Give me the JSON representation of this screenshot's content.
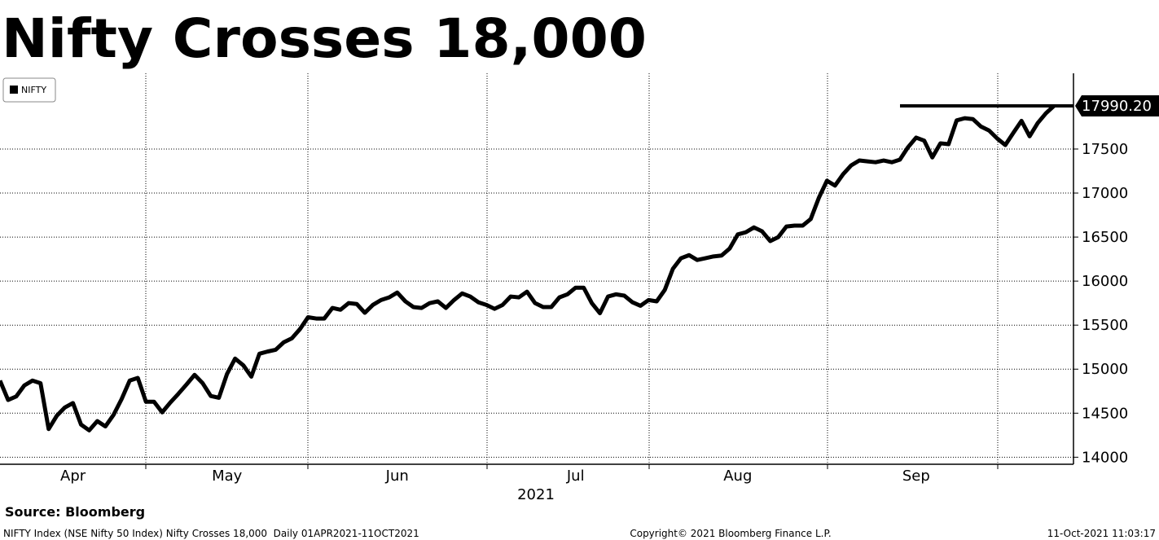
{
  "chart_data": {
    "type": "line",
    "title": "Nifty Crosses 18,000",
    "x_label": "2021",
    "categories": [
      null,
      null,
      null,
      null,
      null,
      null,
      null,
      null,
      null,
      "Apr",
      null,
      null,
      null,
      null,
      null,
      null,
      null,
      null,
      null,
      null,
      null,
      null,
      null,
      null,
      null,
      null,
      null,
      null,
      "May",
      null,
      null,
      null,
      null,
      null,
      null,
      null,
      null,
      null,
      null,
      null,
      null,
      null,
      null,
      null,
      null,
      null,
      null,
      null,
      null,
      "Jun",
      null,
      null,
      null,
      null,
      null,
      null,
      null,
      null,
      null,
      null,
      null,
      null,
      null,
      null,
      null,
      null,
      null,
      null,
      null,
      null,
      null,
      "Jul",
      null,
      null,
      null,
      null,
      null,
      null,
      null,
      null,
      null,
      null,
      null,
      null,
      null,
      null,
      null,
      null,
      null,
      null,
      null,
      "Aug",
      null,
      null,
      null,
      null,
      null,
      null,
      null,
      null,
      null,
      null,
      null,
      null,
      null,
      null,
      null,
      null,
      null,
      null,
      null,
      null,
      null,
      "Sep",
      null,
      null,
      null,
      null,
      null,
      null,
      null,
      null,
      null,
      null,
      null,
      null,
      null,
      null,
      null,
      null,
      null
    ],
    "series": [
      {
        "name": "NIFTY",
        "color": "#000000",
        "values": [
          14870,
          14650,
          14690,
          14815,
          14870,
          14840,
          14320,
          14470,
          14565,
          14615,
          14370,
          14305,
          14410,
          14350,
          14480,
          14660,
          14870,
          14900,
          14630,
          14630,
          14510,
          14620,
          14720,
          14825,
          14935,
          14840,
          14695,
          14675,
          14945,
          15120,
          15045,
          14915,
          15175,
          15200,
          15220,
          15305,
          15350,
          15455,
          15590,
          15575,
          15575,
          15695,
          15675,
          15750,
          15740,
          15640,
          15730,
          15785,
          15815,
          15870,
          15770,
          15705,
          15695,
          15750,
          15770,
          15695,
          15785,
          15860,
          15825,
          15760,
          15730,
          15685,
          15730,
          15825,
          15815,
          15880,
          15750,
          15705,
          15705,
          15815,
          15850,
          15925,
          15925,
          15750,
          15635,
          15825,
          15850,
          15835,
          15760,
          15720,
          15785,
          15770,
          15900,
          16140,
          16260,
          16295,
          16240,
          16260,
          16280,
          16290,
          16370,
          16530,
          16555,
          16610,
          16565,
          16455,
          16500,
          16620,
          16630,
          16630,
          16705,
          16945,
          17140,
          17085,
          17215,
          17315,
          17370,
          17360,
          17350,
          17370,
          17350,
          17380,
          17520,
          17630,
          17595,
          17405,
          17565,
          17555,
          17825,
          17850,
          17840,
          17755,
          17710,
          17620,
          17545,
          17685,
          17820,
          17645,
          17795,
          17905,
          17990.2
        ]
      }
    ],
    "last_value": {
      "value": 17990.2,
      "label": "17990.20"
    },
    "ylim": [
      13920,
      18360
    ],
    "yticks": [
      14000,
      14500,
      15000,
      15500,
      16000,
      16500,
      17000,
      17500
    ],
    "grid": true,
    "legend": "upper left",
    "source": "Source: Bloomberg",
    "footer_left": "NIFTY Index (NSE Nifty 50 Index) Nifty Crosses 18,000  Daily 01APR2021-11OCT2021",
    "footer_center": "Copyright© 2021 Bloomberg Finance L.P.",
    "footer_right": "11-Oct-2021 11:03:17"
  }
}
